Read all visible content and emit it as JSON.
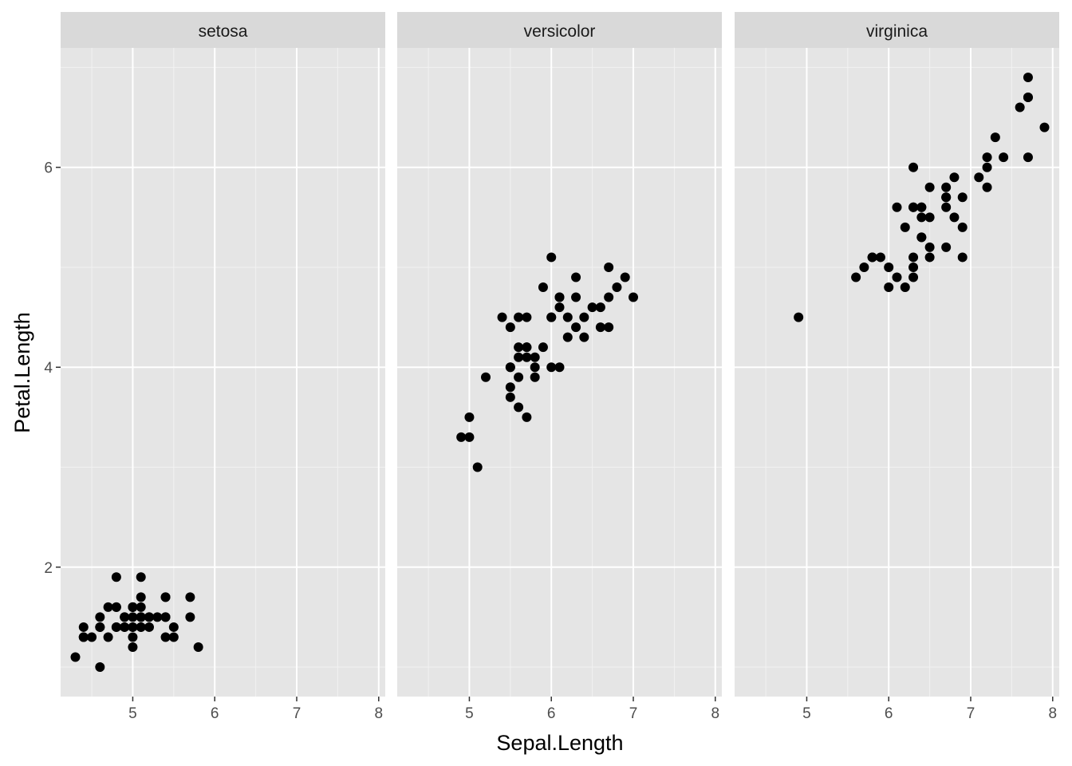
{
  "chart_data": {
    "type": "scatter",
    "xlabel": "Sepal.Length",
    "ylabel": "Petal.Length",
    "xlim": [
      4.12,
      8.08
    ],
    "ylim": [
      0.705,
      7.195
    ],
    "x_ticks": [
      5,
      6,
      7,
      8
    ],
    "y_ticks": [
      2,
      4,
      6
    ],
    "grid": true,
    "point_color": "#000000",
    "panel_background": "#e5e5e5",
    "strip_background": "#d9d9d9",
    "facets": [
      {
        "label": "setosa",
        "points": [
          [
            5.1,
            1.4
          ],
          [
            4.9,
            1.4
          ],
          [
            4.7,
            1.3
          ],
          [
            4.6,
            1.5
          ],
          [
            5.0,
            1.4
          ],
          [
            5.4,
            1.7
          ],
          [
            4.6,
            1.4
          ],
          [
            5.0,
            1.5
          ],
          [
            4.4,
            1.4
          ],
          [
            4.9,
            1.5
          ],
          [
            5.4,
            1.5
          ],
          [
            4.8,
            1.6
          ],
          [
            4.8,
            1.4
          ],
          [
            4.3,
            1.1
          ],
          [
            5.8,
            1.2
          ],
          [
            5.7,
            1.5
          ],
          [
            5.4,
            1.3
          ],
          [
            5.1,
            1.4
          ],
          [
            5.7,
            1.7
          ],
          [
            5.1,
            1.5
          ],
          [
            5.4,
            1.7
          ],
          [
            5.1,
            1.5
          ],
          [
            4.6,
            1.0
          ],
          [
            5.1,
            1.7
          ],
          [
            4.8,
            1.9
          ],
          [
            5.0,
            1.6
          ],
          [
            5.0,
            1.6
          ],
          [
            5.2,
            1.5
          ],
          [
            5.2,
            1.4
          ],
          [
            4.7,
            1.6
          ],
          [
            4.8,
            1.6
          ],
          [
            5.4,
            1.5
          ],
          [
            5.2,
            1.5
          ],
          [
            5.5,
            1.4
          ],
          [
            4.9,
            1.5
          ],
          [
            5.0,
            1.2
          ],
          [
            5.5,
            1.3
          ],
          [
            4.9,
            1.4
          ],
          [
            4.4,
            1.3
          ],
          [
            5.1,
            1.5
          ],
          [
            5.0,
            1.3
          ],
          [
            4.5,
            1.3
          ],
          [
            4.4,
            1.3
          ],
          [
            5.0,
            1.6
          ],
          [
            5.1,
            1.9
          ],
          [
            4.8,
            1.4
          ],
          [
            5.1,
            1.6
          ],
          [
            4.6,
            1.4
          ],
          [
            5.3,
            1.5
          ],
          [
            5.0,
            1.4
          ]
        ]
      },
      {
        "label": "versicolor",
        "points": [
          [
            7.0,
            4.7
          ],
          [
            6.4,
            4.5
          ],
          [
            6.9,
            4.9
          ],
          [
            5.5,
            4.0
          ],
          [
            6.5,
            4.6
          ],
          [
            5.7,
            4.5
          ],
          [
            6.3,
            4.7
          ],
          [
            4.9,
            3.3
          ],
          [
            6.6,
            4.6
          ],
          [
            5.2,
            3.9
          ],
          [
            5.0,
            3.5
          ],
          [
            5.9,
            4.2
          ],
          [
            6.0,
            4.0
          ],
          [
            6.1,
            4.7
          ],
          [
            5.6,
            3.6
          ],
          [
            6.7,
            4.4
          ],
          [
            5.6,
            4.5
          ],
          [
            5.8,
            4.1
          ],
          [
            6.2,
            4.5
          ],
          [
            5.6,
            3.9
          ],
          [
            5.9,
            4.8
          ],
          [
            6.1,
            4.0
          ],
          [
            6.3,
            4.9
          ],
          [
            6.1,
            4.7
          ],
          [
            6.4,
            4.3
          ],
          [
            6.6,
            4.4
          ],
          [
            6.8,
            4.8
          ],
          [
            6.7,
            5.0
          ],
          [
            6.0,
            4.5
          ],
          [
            5.7,
            3.5
          ],
          [
            5.5,
            3.8
          ],
          [
            5.5,
            3.7
          ],
          [
            5.8,
            3.9
          ],
          [
            6.0,
            5.1
          ],
          [
            5.4,
            4.5
          ],
          [
            6.0,
            4.5
          ],
          [
            6.7,
            4.7
          ],
          [
            6.3,
            4.4
          ],
          [
            5.6,
            4.1
          ],
          [
            5.5,
            4.0
          ],
          [
            5.5,
            4.4
          ],
          [
            6.1,
            4.6
          ],
          [
            5.8,
            4.0
          ],
          [
            5.0,
            3.3
          ],
          [
            5.6,
            4.2
          ],
          [
            5.7,
            4.2
          ],
          [
            5.7,
            4.2
          ],
          [
            6.2,
            4.3
          ],
          [
            5.1,
            3.0
          ],
          [
            5.7,
            4.1
          ]
        ]
      },
      {
        "label": "virginica",
        "points": [
          [
            6.3,
            6.0
          ],
          [
            5.8,
            5.1
          ],
          [
            7.1,
            5.9
          ],
          [
            6.3,
            5.6
          ],
          [
            6.5,
            5.8
          ],
          [
            7.6,
            6.6
          ],
          [
            4.9,
            4.5
          ],
          [
            7.3,
            6.3
          ],
          [
            6.7,
            5.8
          ],
          [
            7.2,
            6.1
          ],
          [
            6.5,
            5.1
          ],
          [
            6.4,
            5.3
          ],
          [
            6.8,
            5.5
          ],
          [
            5.7,
            5.0
          ],
          [
            5.8,
            5.1
          ],
          [
            6.4,
            5.3
          ],
          [
            6.5,
            5.5
          ],
          [
            7.7,
            6.7
          ],
          [
            7.7,
            6.9
          ],
          [
            6.0,
            5.0
          ],
          [
            6.9,
            5.7
          ],
          [
            5.6,
            4.9
          ],
          [
            7.7,
            6.7
          ],
          [
            6.3,
            4.9
          ],
          [
            6.7,
            5.7
          ],
          [
            7.2,
            6.0
          ],
          [
            6.2,
            4.8
          ],
          [
            6.1,
            4.9
          ],
          [
            6.4,
            5.6
          ],
          [
            7.2,
            5.8
          ],
          [
            7.4,
            6.1
          ],
          [
            7.9,
            6.4
          ],
          [
            6.4,
            5.6
          ],
          [
            6.3,
            5.1
          ],
          [
            6.1,
            5.6
          ],
          [
            7.7,
            6.1
          ],
          [
            6.3,
            5.6
          ],
          [
            6.4,
            5.5
          ],
          [
            6.0,
            4.8
          ],
          [
            6.9,
            5.4
          ],
          [
            6.7,
            5.6
          ],
          [
            6.9,
            5.1
          ],
          [
            5.8,
            5.1
          ],
          [
            6.8,
            5.9
          ],
          [
            6.7,
            5.7
          ],
          [
            6.7,
            5.2
          ],
          [
            6.3,
            5.0
          ],
          [
            6.5,
            5.2
          ],
          [
            6.2,
            5.4
          ],
          [
            5.9,
            5.1
          ]
        ]
      }
    ]
  }
}
